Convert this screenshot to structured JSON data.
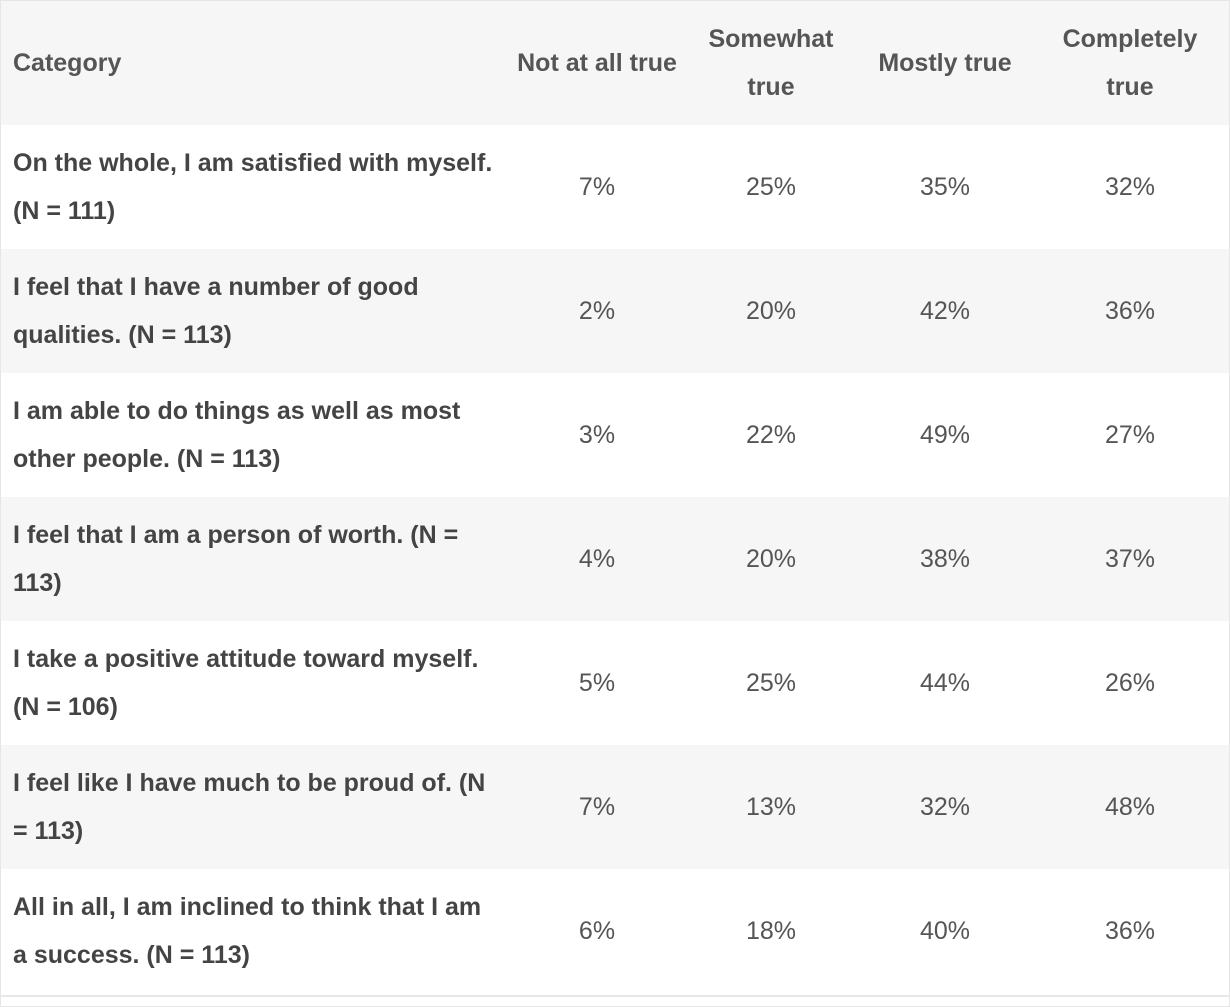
{
  "table": {
    "headers": [
      "Category",
      "Not at all true",
      "Somewhat true",
      "Mostly true",
      "Completely true"
    ],
    "rows": [
      {
        "category": "On the whole, I am satisfied with myself. (N = 111)",
        "values": [
          "7%",
          "25%",
          "35%",
          "32%"
        ]
      },
      {
        "category": "I feel that I have a number of good qualities. (N = 113)",
        "values": [
          "2%",
          "20%",
          "42%",
          "36%"
        ]
      },
      {
        "category": "I am able to do things as well as most other people. (N = 113)",
        "values": [
          "3%",
          "22%",
          "49%",
          "27%"
        ]
      },
      {
        "category": "I feel that I am a person of worth. (N = 113)",
        "values": [
          "4%",
          "20%",
          "38%",
          "37%"
        ]
      },
      {
        "category": "I take a positive attitude toward myself. (N = 106)",
        "values": [
          "5%",
          "25%",
          "44%",
          "26%"
        ]
      },
      {
        "category": "I feel like I have much to be proud of. (N = 113)",
        "values": [
          "7%",
          "13%",
          "32%",
          "48%"
        ]
      },
      {
        "category": "All in all, I am inclined to think that I am a success. (N = 113)",
        "values": [
          "6%",
          "18%",
          "40%",
          "36%"
        ]
      }
    ]
  },
  "colors": {
    "header_bg": "#f6f6f6",
    "stripe_bg": "#f6f6f6",
    "text": "#444444"
  }
}
